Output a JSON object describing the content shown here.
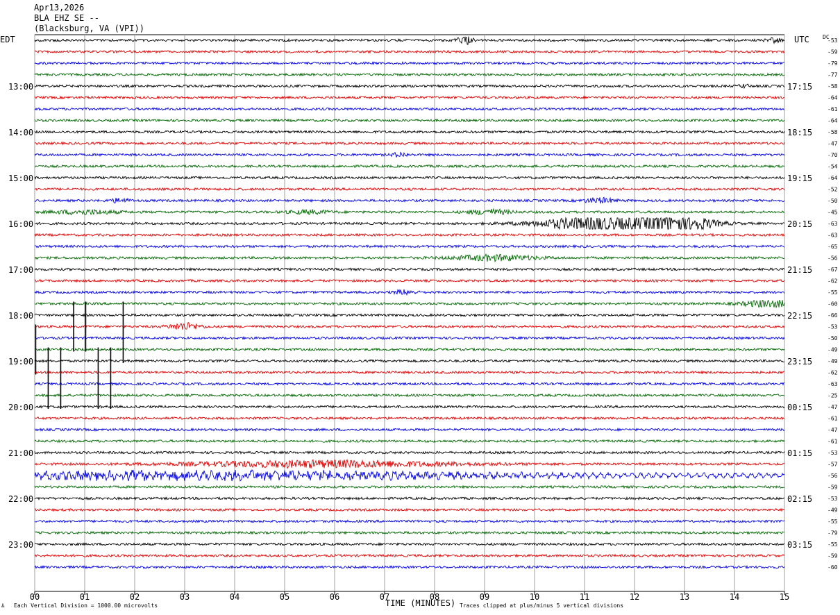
{
  "header": {
    "date": "Apr13,2026",
    "station": "BLA EHZ SE --",
    "location": "(Blacksburg, VA (VPI))"
  },
  "labels": {
    "left_tz": "EDT",
    "right_tz": "UTC",
    "dc": "DC",
    "x_title": "TIME (MINUTES)",
    "scale_note": "Each Vertical Division = 1000.00 microvolts",
    "clip_note": "Traces clipped at plus/minus 5 vertical divisions",
    "corner_mark": "╩"
  },
  "colors": {
    "cycle": [
      "#000000",
      "#dd0000",
      "#0000dd",
      "#006600"
    ],
    "grid": "#888888"
  },
  "chart_data": {
    "type": "line",
    "title": "BLA EHZ SE --",
    "xlabel": "TIME (MINUTES)",
    "xlim": [
      0,
      15
    ],
    "x_ticks": [
      "00",
      "01",
      "02",
      "03",
      "04",
      "05",
      "06",
      "07",
      "08",
      "09",
      "10",
      "11",
      "12",
      "13",
      "14",
      "15"
    ],
    "minutes_per_trace": 15,
    "left_hour_labels": [
      "13:00",
      "14:00",
      "15:00",
      "16:00",
      "17:00",
      "18:00",
      "19:00",
      "20:00",
      "21:00",
      "22:00",
      "23:00"
    ],
    "right_hour_labels": [
      "17:15",
      "18:15",
      "19:15",
      "20:15",
      "21:15",
      "22:15",
      "23:15",
      "00:15",
      "01:15",
      "02:15",
      "03:15"
    ],
    "dc_offsets": [
      -53,
      -59,
      -79,
      -77,
      -58,
      -64,
      -61,
      -64,
      -58,
      -47,
      -70,
      -54,
      -64,
      -52,
      -50,
      -45,
      -63,
      -63,
      -65,
      -56,
      -67,
      -62,
      -55,
      -60,
      -66,
      -53,
      -50,
      -49,
      -49,
      -62,
      -63,
      -25,
      -47,
      -61,
      -47,
      -61,
      -53,
      -57,
      -56,
      -59,
      -53,
      -49,
      -55,
      -79,
      -55,
      -59,
      -60
    ],
    "events": [
      {
        "trace": 0,
        "minute": 8.6,
        "amp": 3,
        "dur": 0.15
      },
      {
        "trace": 0,
        "minute": 14.8,
        "amp": 1.5,
        "dur": 0.15
      },
      {
        "trace": 4,
        "minute": 14.2,
        "amp": 1.2,
        "dur": 0.1
      },
      {
        "trace": 10,
        "minute": 7.3,
        "amp": 1.5,
        "dur": 0.15
      },
      {
        "trace": 14,
        "minute": 1.7,
        "amp": 1.5,
        "dur": 0.2
      },
      {
        "trace": 14,
        "minute": 11.3,
        "amp": 1.8,
        "dur": 0.3
      },
      {
        "trace": 15,
        "minute": 1.0,
        "amp": 1.5,
        "dur": 0.6
      },
      {
        "trace": 15,
        "minute": 5.5,
        "amp": 1.3,
        "dur": 0.4
      },
      {
        "trace": 15,
        "minute": 9.1,
        "amp": 1.8,
        "dur": 0.4
      },
      {
        "trace": 16,
        "minute": 11.4,
        "amp": 6,
        "dur": 1.2
      },
      {
        "trace": 16,
        "minute": 12.6,
        "amp": 3,
        "dur": 0.2
      },
      {
        "trace": 16,
        "minute": 13.0,
        "amp": 5,
        "dur": 0.6
      },
      {
        "trace": 19,
        "minute": 9.2,
        "amp": 2,
        "dur": 0.8
      },
      {
        "trace": 22,
        "minute": 7.4,
        "amp": 1.5,
        "dur": 0.2
      },
      {
        "trace": 23,
        "minute": 14.7,
        "amp": 2.5,
        "dur": 0.5
      },
      {
        "trace": 25,
        "minute": 3.0,
        "amp": 2.5,
        "dur": 0.3
      },
      {
        "trace": 37,
        "minute": 5.8,
        "amp": 2.5,
        "dur": 2.5
      },
      {
        "trace": 38,
        "minute": 3.5,
        "amp": 2.5,
        "dur": 5.5
      }
    ],
    "spikes": [
      {
        "start_trace": 23,
        "end_trace": 27,
        "minute": 0.78
      },
      {
        "start_trace": 23,
        "end_trace": 27,
        "minute": 1.02
      },
      {
        "start_trace": 23,
        "end_trace": 28,
        "minute": 1.77
      },
      {
        "start_trace": 25,
        "end_trace": 29,
        "minute": 0.02
      },
      {
        "start_trace": 27,
        "end_trace": 32,
        "minute": 0.27
      },
      {
        "start_trace": 27,
        "end_trace": 32,
        "minute": 0.52
      },
      {
        "start_trace": 27,
        "end_trace": 32,
        "minute": 1.27
      },
      {
        "start_trace": 27,
        "end_trace": 32,
        "minute": 1.52
      }
    ]
  }
}
